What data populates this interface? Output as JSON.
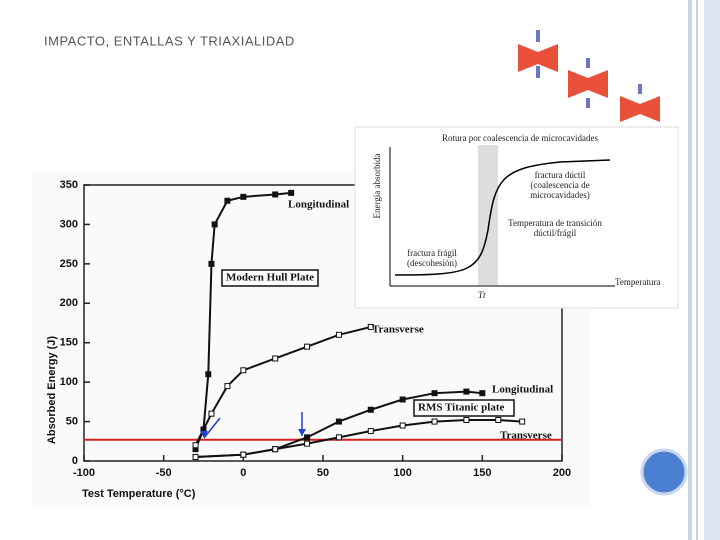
{
  "slide_title": "IMPACTO, ENTALLAS Y TRIAXIALIDAD",
  "chart_data": {
    "type": "line",
    "x_label": "Test Temperature (°C)",
    "y_label": "Absorbed Energy (J)",
    "xlim": [
      -100,
      200
    ],
    "xticks": [
      -100,
      -50,
      0,
      50,
      100,
      150,
      200
    ],
    "ylim": [
      0,
      350
    ],
    "yticks": [
      0,
      50,
      100,
      150,
      200,
      250,
      300,
      350
    ],
    "series": [
      {
        "name": "Longitudinal",
        "color": "#111111",
        "x": [
          -30,
          -25,
          -22,
          -20,
          -18,
          -10,
          0,
          20,
          30
        ],
        "values": [
          15,
          40,
          110,
          250,
          300,
          330,
          335,
          338,
          340
        ]
      },
      {
        "name": "Transverse",
        "color": "#111111",
        "x": [
          -30,
          -20,
          -10,
          0,
          20,
          40,
          60,
          80
        ],
        "values": [
          20,
          60,
          95,
          115,
          130,
          145,
          160,
          170
        ]
      },
      {
        "name": "Longitudinal",
        "color": "#111111",
        "x": [
          -30,
          0,
          20,
          40,
          60,
          80,
          100,
          120,
          140,
          150
        ],
        "values": [
          5,
          8,
          15,
          30,
          50,
          65,
          78,
          86,
          88,
          86
        ]
      },
      {
        "name": "Transverse",
        "color": "#111111",
        "x": [
          -30,
          0,
          20,
          40,
          60,
          80,
          100,
          120,
          140,
          160,
          175
        ],
        "values": [
          5,
          8,
          15,
          22,
          30,
          38,
          45,
          50,
          52,
          52,
          50
        ]
      }
    ],
    "annotations": [
      "Modern Hull Plate",
      "RMS Titanic plate"
    ],
    "reference_line": {
      "value": 27,
      "color": "#d42020"
    }
  },
  "inset": {
    "y_label": "Energía absorbida",
    "x_label": "Temperatura",
    "tt": "Tt",
    "ductile": [
      "fractura dúctil",
      "(coalescencia de",
      "microcavidades)"
    ],
    "transition": [
      "Temperatura de transición",
      "dúctil/frágil"
    ],
    "brittle": [
      "fractura frágil",
      "(descohesión)"
    ],
    "top_caption": "Rotura por coalescencia de microcavidades"
  }
}
